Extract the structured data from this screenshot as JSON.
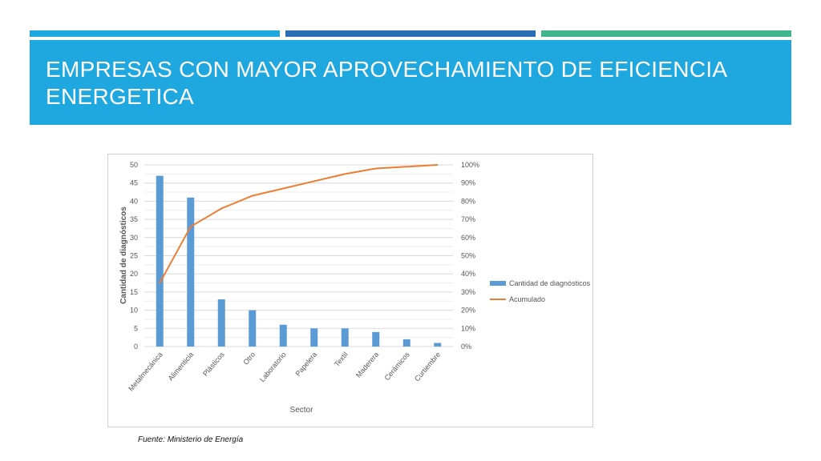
{
  "slide": {
    "title": "EMPRESAS CON MAYOR APROVECHAMIENTO DE EFICIENCIA ENERGETICA",
    "source": "Fuente: Ministerio de Energía"
  },
  "colors": {
    "title_band": "#1fa7e0",
    "accent_1": "#1fa7e0",
    "accent_2": "#2a6fb4",
    "accent_3": "#3fb68b",
    "bar": "#5b9bd5",
    "line": "#ed7d31"
  },
  "chart_data": {
    "type": "bar",
    "title": "",
    "xlabel": "Sector",
    "ylabel": "Cantidad de diagnósticos",
    "categories": [
      "Metalmecánica",
      "Alimenticia",
      "Plásticos",
      "Otro",
      "Laboratorio",
      "Papelera",
      "Textil",
      "Maderera",
      "Cerámicos",
      "Curtiembre"
    ],
    "ylim": [
      0,
      50
    ],
    "y_ticks": [
      "0",
      "5",
      "10",
      "15",
      "20",
      "25",
      "30",
      "35",
      "40",
      "45",
      "50"
    ],
    "y2lim": [
      0,
      100
    ],
    "y2_ticks": [
      "0%",
      "10%",
      "20%",
      "30%",
      "40%",
      "50%",
      "60%",
      "70%",
      "80%",
      "90%",
      "100%"
    ],
    "grid": true,
    "legend_position": "right",
    "series": [
      {
        "name": "Cantidad de diagnósticos",
        "type": "bar",
        "axis": "left",
        "values": [
          47,
          41,
          13,
          10,
          6,
          5,
          5,
          4,
          2,
          1
        ]
      },
      {
        "name": "Acumulado",
        "type": "line",
        "axis": "right",
        "values": [
          35,
          66,
          76,
          83,
          87,
          91,
          95,
          98,
          99,
          100
        ]
      }
    ]
  }
}
